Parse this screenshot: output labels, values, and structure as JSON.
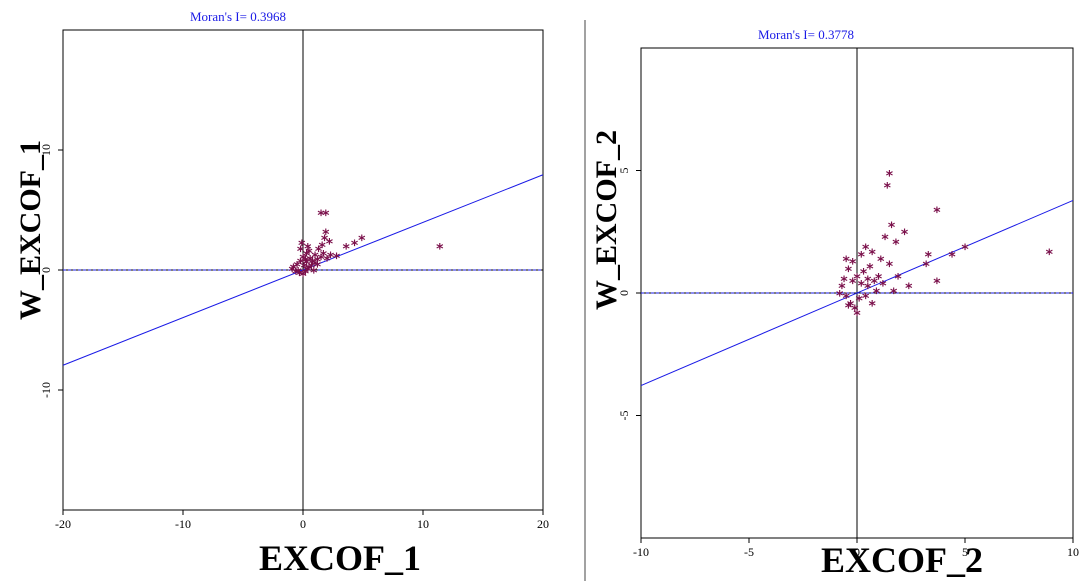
{
  "chart_data": [
    {
      "type": "scatter",
      "title": "Moran's I= 0.3968",
      "xlabel": "EXCOF_1",
      "ylabel": "W_EXCOF_1",
      "xlim": [
        -20,
        20
      ],
      "ylim": [
        -20,
        20
      ],
      "xticks": [
        -20,
        -10,
        0,
        10,
        20
      ],
      "yticks": [
        -10,
        0,
        10
      ],
      "regression_slope": 0.3968,
      "marker_color": "#7a0f4a",
      "line_color": "#1a1ae6",
      "points": [
        [
          -0.5,
          0.3
        ],
        [
          -0.2,
          0.6
        ],
        [
          0,
          0.9
        ],
        [
          0.3,
          1.2
        ],
        [
          -0.4,
          -0.2
        ],
        [
          0.2,
          -0.3
        ],
        [
          0.5,
          0.1
        ],
        [
          0.8,
          0.6
        ],
        [
          1.0,
          0.4
        ],
        [
          -0.8,
          0.1
        ],
        [
          -0.3,
          -0.4
        ],
        [
          0.1,
          0.2
        ],
        [
          0.4,
          -0.1
        ],
        [
          0.6,
          0.8
        ],
        [
          0.9,
          -0.2
        ],
        [
          1.2,
          0.3
        ],
        [
          -0.6,
          -0.3
        ],
        [
          0.0,
          -0.5
        ],
        [
          0.3,
          0.5
        ],
        [
          0.7,
          0.2
        ],
        [
          -0.2,
          1.6
        ],
        [
          -0.1,
          2.1
        ],
        [
          0.4,
          1.8
        ],
        [
          1.5,
          0.9
        ],
        [
          1.7,
          1.2
        ],
        [
          1.3,
          1.6
        ],
        [
          1.5,
          4.6
        ],
        [
          1.9,
          4.6
        ],
        [
          1.9,
          3.0
        ],
        [
          1.8,
          2.5
        ],
        [
          2.2,
          2.2
        ],
        [
          1.6,
          1.9
        ],
        [
          2.3,
          1.1
        ],
        [
          2.8,
          1.0
        ],
        [
          3.6,
          1.8
        ],
        [
          4.3,
          2.1
        ],
        [
          4.9,
          2.5
        ],
        [
          1.0,
          1.1
        ],
        [
          1.2,
          0.7
        ],
        [
          2.0,
          0.8
        ],
        [
          11.4,
          1.8
        ],
        [
          0.5,
          1.4
        ],
        [
          -0.9,
          -0.1
        ],
        [
          0.2,
          0.7
        ]
      ]
    },
    {
      "type": "scatter",
      "title": "Moran's I= 0.3778",
      "xlabel": "EXCOF_2",
      "ylabel": "W_EXCOF_2",
      "xlim": [
        -10,
        10
      ],
      "ylim": [
        -10,
        10
      ],
      "xticks": [
        -10,
        -5,
        0,
        5,
        10
      ],
      "yticks": [
        -5,
        0,
        5
      ],
      "regression_slope": 0.3778,
      "marker_color": "#7a0f4a",
      "line_color": "#1a1ae6",
      "points": [
        [
          -0.6,
          0.5
        ],
        [
          -0.4,
          0.9
        ],
        [
          -0.2,
          1.2
        ],
        [
          0,
          0.6
        ],
        [
          0.2,
          0.3
        ],
        [
          -0.5,
          -0.2
        ],
        [
          -0.3,
          -0.5
        ],
        [
          0.1,
          -0.3
        ],
        [
          0.3,
          0.8
        ],
        [
          0.5,
          0.2
        ],
        [
          0.6,
          1.0
        ],
        [
          0.8,
          0.4
        ],
        [
          -0.7,
          0.2
        ],
        [
          -0.1,
          -0.7
        ],
        [
          0.4,
          -0.2
        ],
        [
          0.7,
          -0.5
        ],
        [
          1.0,
          0.6
        ],
        [
          1.1,
          1.3
        ],
        [
          0.9,
          0.0
        ],
        [
          -0.8,
          -0.1
        ],
        [
          -0.2,
          0.4
        ],
        [
          0.2,
          1.5
        ],
        [
          -0.5,
          1.3
        ],
        [
          0.4,
          1.8
        ],
        [
          0.7,
          1.6
        ],
        [
          1.5,
          4.8
        ],
        [
          1.4,
          4.3
        ],
        [
          1.6,
          2.7
        ],
        [
          1.3,
          2.2
        ],
        [
          1.8,
          2.0
        ],
        [
          2.2,
          2.4
        ],
        [
          1.5,
          1.1
        ],
        [
          1.9,
          0.6
        ],
        [
          2.4,
          0.2
        ],
        [
          3.3,
          1.5
        ],
        [
          3.7,
          3.3
        ],
        [
          3.7,
          0.4
        ],
        [
          4.4,
          1.5
        ],
        [
          5.0,
          1.8
        ],
        [
          8.9,
          1.6
        ],
        [
          1.2,
          0.3
        ],
        [
          0.0,
          -0.9
        ],
        [
          -0.4,
          -0.6
        ],
        [
          0.5,
          0.5
        ],
        [
          1.7,
          0.0
        ],
        [
          3.2,
          1.1
        ]
      ]
    }
  ]
}
